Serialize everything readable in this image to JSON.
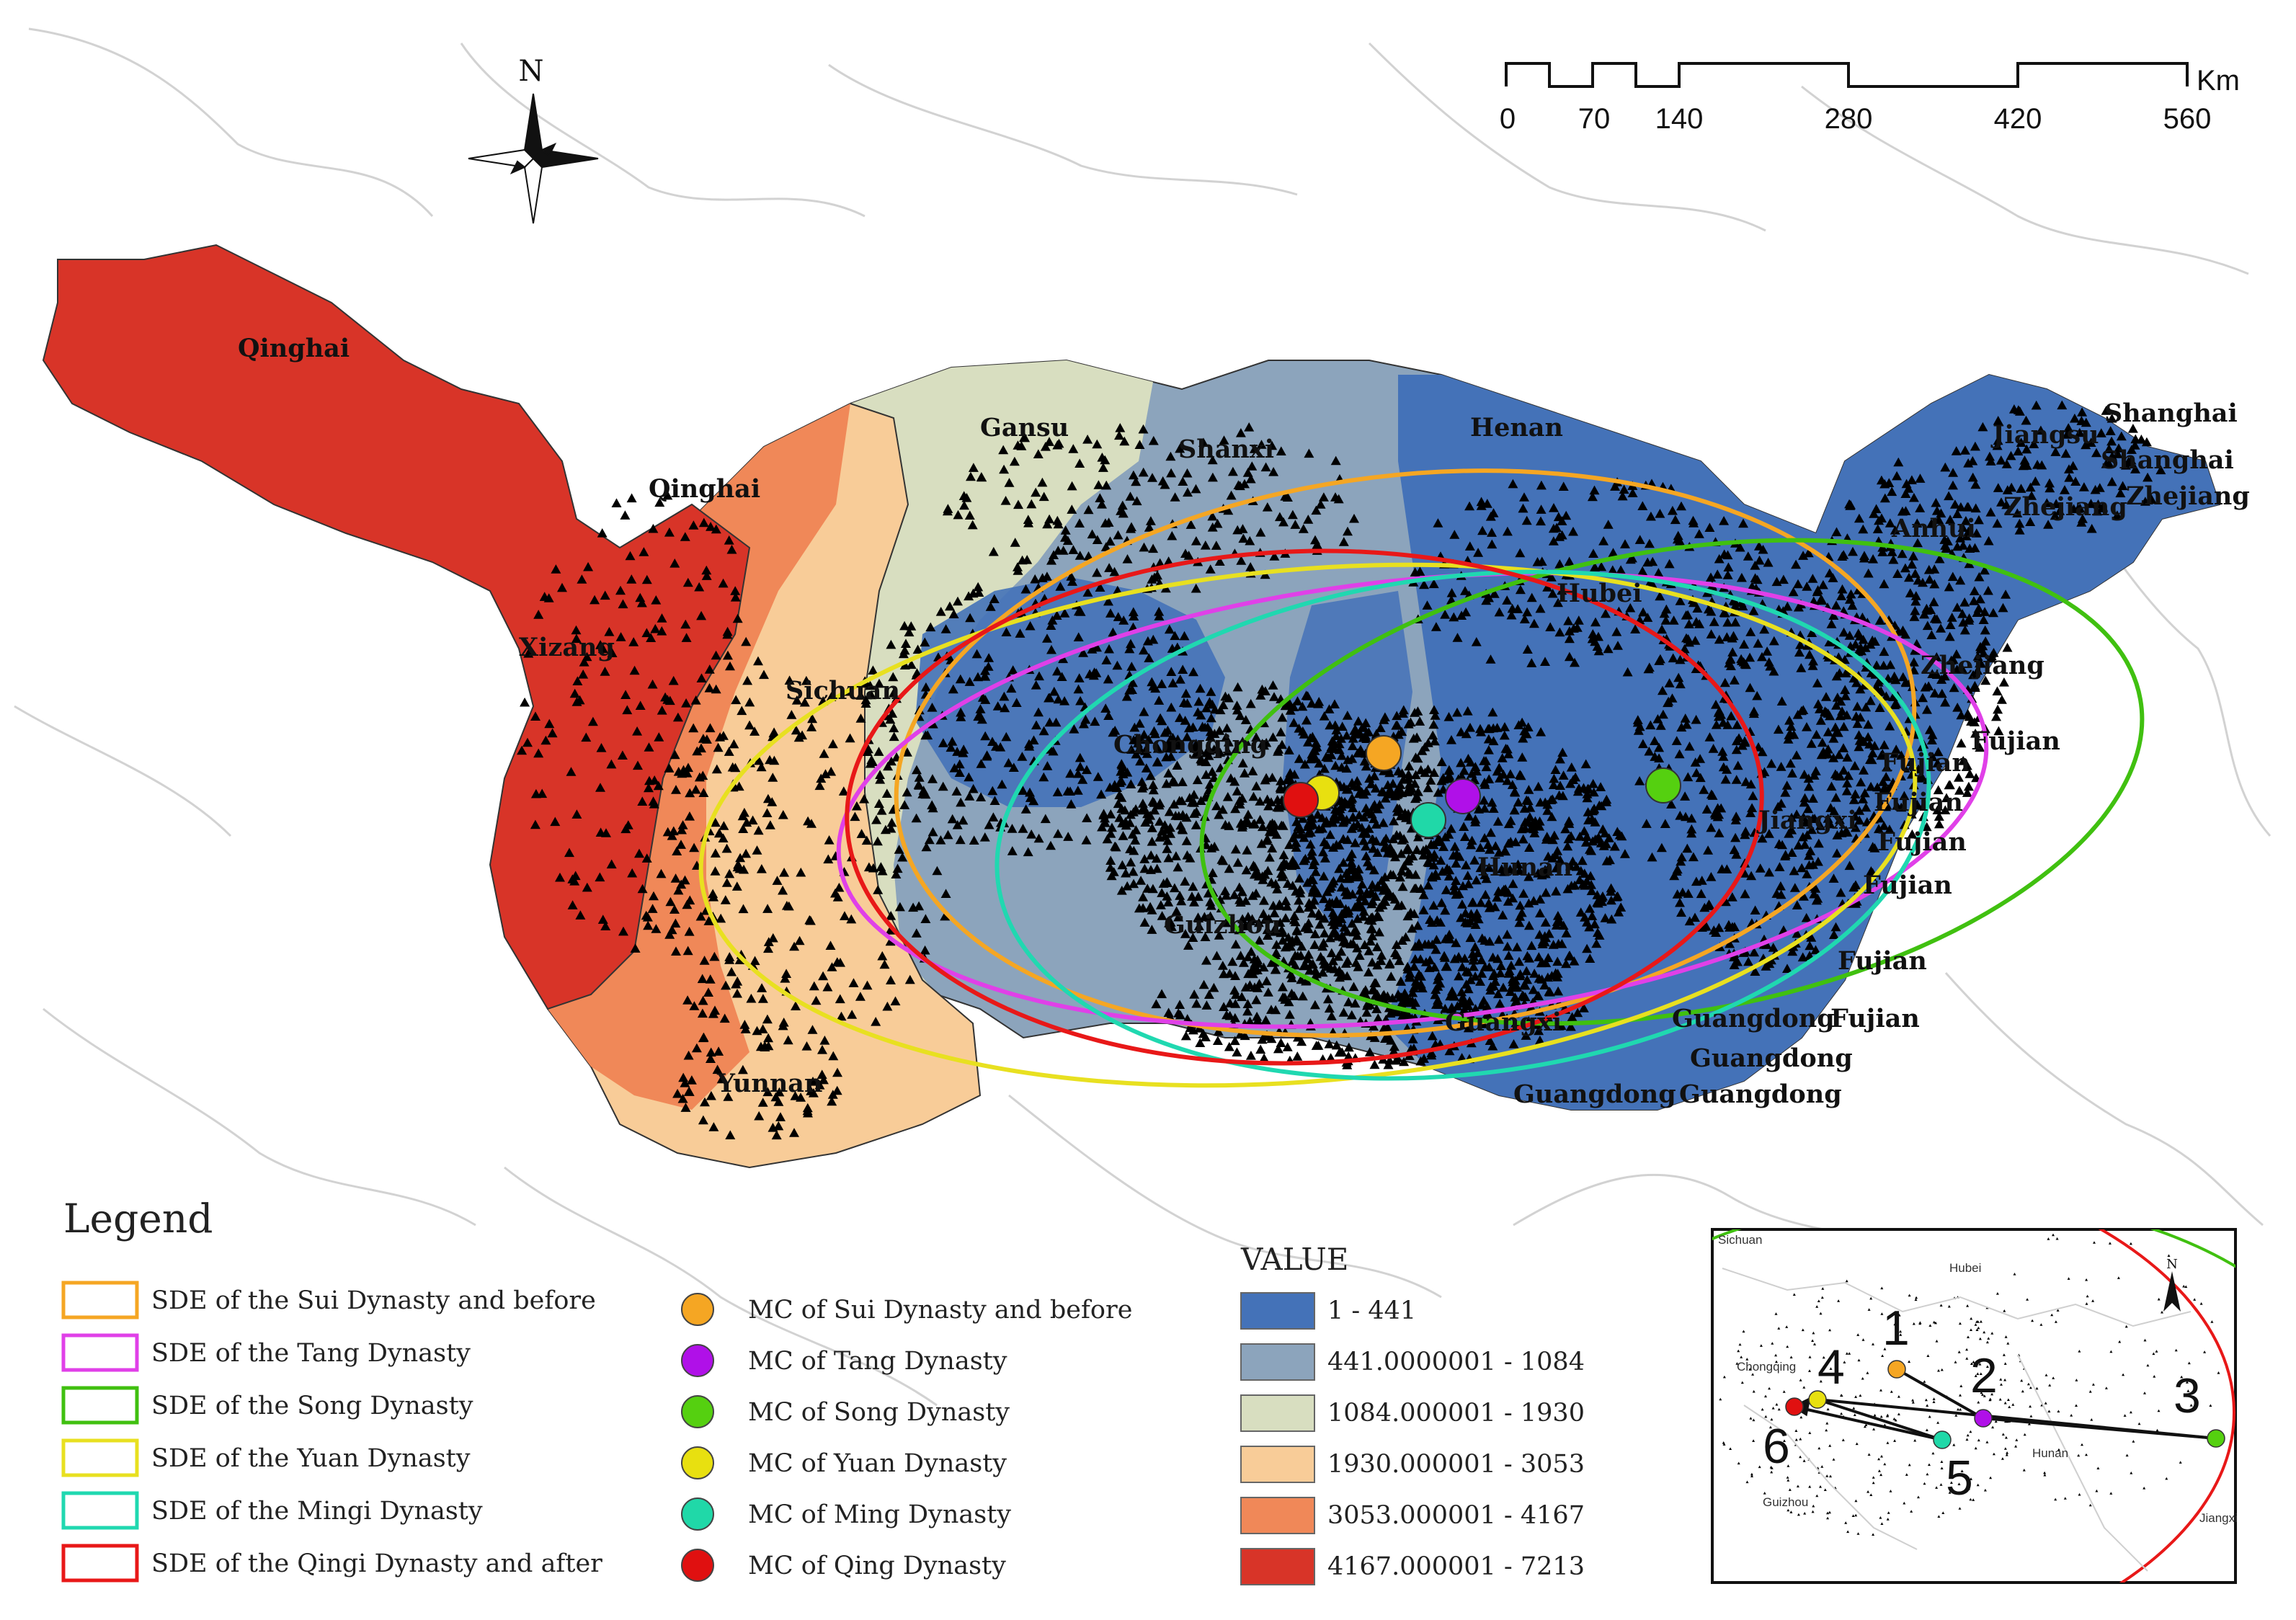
{
  "compass": {
    "north_label": "N"
  },
  "scale_bar": {
    "ticks": [
      "0",
      "70",
      "140",
      "280",
      "420",
      "560"
    ],
    "unit": "Km"
  },
  "provinces": [
    {
      "name": "Qinghai"
    },
    {
      "name": "Qinghai"
    },
    {
      "name": "Gansu"
    },
    {
      "name": "Shanxi"
    },
    {
      "name": "Henan"
    },
    {
      "name": "Jiangsu"
    },
    {
      "name": "Shanghai"
    },
    {
      "name": "Shanghai"
    },
    {
      "name": "Zhejiang"
    },
    {
      "name": "Zhejiang"
    },
    {
      "name": "Anhui"
    },
    {
      "name": "Hubei"
    },
    {
      "name": "Zhejiang"
    },
    {
      "name": "Xizang"
    },
    {
      "name": "Sichuan"
    },
    {
      "name": "Chongqing"
    },
    {
      "name": "Fujian"
    },
    {
      "name": "Fujian"
    },
    {
      "name": "Fujian"
    },
    {
      "name": "Jiangxi"
    },
    {
      "name": "Fujian"
    },
    {
      "name": "Fujian"
    },
    {
      "name": "Hunan"
    },
    {
      "name": "Guizhou"
    },
    {
      "name": "Fujian"
    },
    {
      "name": "Guangxi"
    },
    {
      "name": "Guangdong"
    },
    {
      "name": "Fujian"
    },
    {
      "name": "Guangdong"
    },
    {
      "name": "Yunnan"
    },
    {
      "name": "Guangdong"
    },
    {
      "name": "Guangdong"
    }
  ],
  "mean_centers": [
    {
      "name": "MC of Sui Dynasty and before",
      "color": "#f5a623"
    },
    {
      "name": "MC of Tang Dynasty",
      "color": "#b010e8"
    },
    {
      "name": "MC of Song Dynasty",
      "color": "#55d010"
    },
    {
      "name": "MC of Yuan Dynasty",
      "color": "#e8e010"
    },
    {
      "name": "MC of Ming Dynasty",
      "color": "#20d8a8"
    },
    {
      "name": "MC of Qing Dynasty",
      "color": "#e01010"
    }
  ],
  "legend": {
    "title": "Legend",
    "sde_items": [
      {
        "label": "SDE of the Sui Dynasty and before",
        "color": "#f5a623"
      },
      {
        "label": "SDE of the Tang Dynasty",
        "color": "#e040e8"
      },
      {
        "label": "SDE of the Song Dynasty",
        "color": "#40c010"
      },
      {
        "label": "SDE of the Yuan Dynasty",
        "color": "#e8e020"
      },
      {
        "label": "SDE of the Mingi Dynasty",
        "color": "#20d8b0"
      },
      {
        "label": "SDE of the Qingi Dynasty and after",
        "color": "#e81818"
      }
    ],
    "mc_items": [
      {
        "label": "MC of Sui Dynasty and before",
        "color": "#f5a623"
      },
      {
        "label": "MC of Tang Dynasty",
        "color": "#b010e8"
      },
      {
        "label": "MC of Song Dynasty",
        "color": "#55d010"
      },
      {
        "label": "MC of Yuan Dynasty",
        "color": "#e8e010"
      },
      {
        "label": "MC of Ming Dynasty",
        "color": "#20d8a8"
      },
      {
        "label": "MC of Qing Dynasty",
        "color": "#e01010"
      }
    ],
    "value_title": "VALUE",
    "value_items": [
      {
        "label": "1 - 441",
        "color": "#4472b8"
      },
      {
        "label": "441.0000001 - 1084",
        "color": "#8ca4bc"
      },
      {
        "label": "1084.000001 - 1930",
        "color": "#d8dec0"
      },
      {
        "label": "1930.000001 - 3053",
        "color": "#f8cc98"
      },
      {
        "label": "3053.000001 - 4167",
        "color": "#f08858"
      },
      {
        "label": "4167.000001 - 7213",
        "color": "#d83428"
      }
    ]
  },
  "inset": {
    "labels": [
      {
        "text": "Sichuan"
      },
      {
        "text": "Hubei"
      },
      {
        "text": "Chongqing"
      },
      {
        "text": "Hunan"
      },
      {
        "text": "Guizhou"
      },
      {
        "text": "Jiangxi"
      }
    ],
    "north_label": "N",
    "sequence_numbers": [
      "1",
      "2",
      "3",
      "4",
      "5",
      "6"
    ]
  }
}
